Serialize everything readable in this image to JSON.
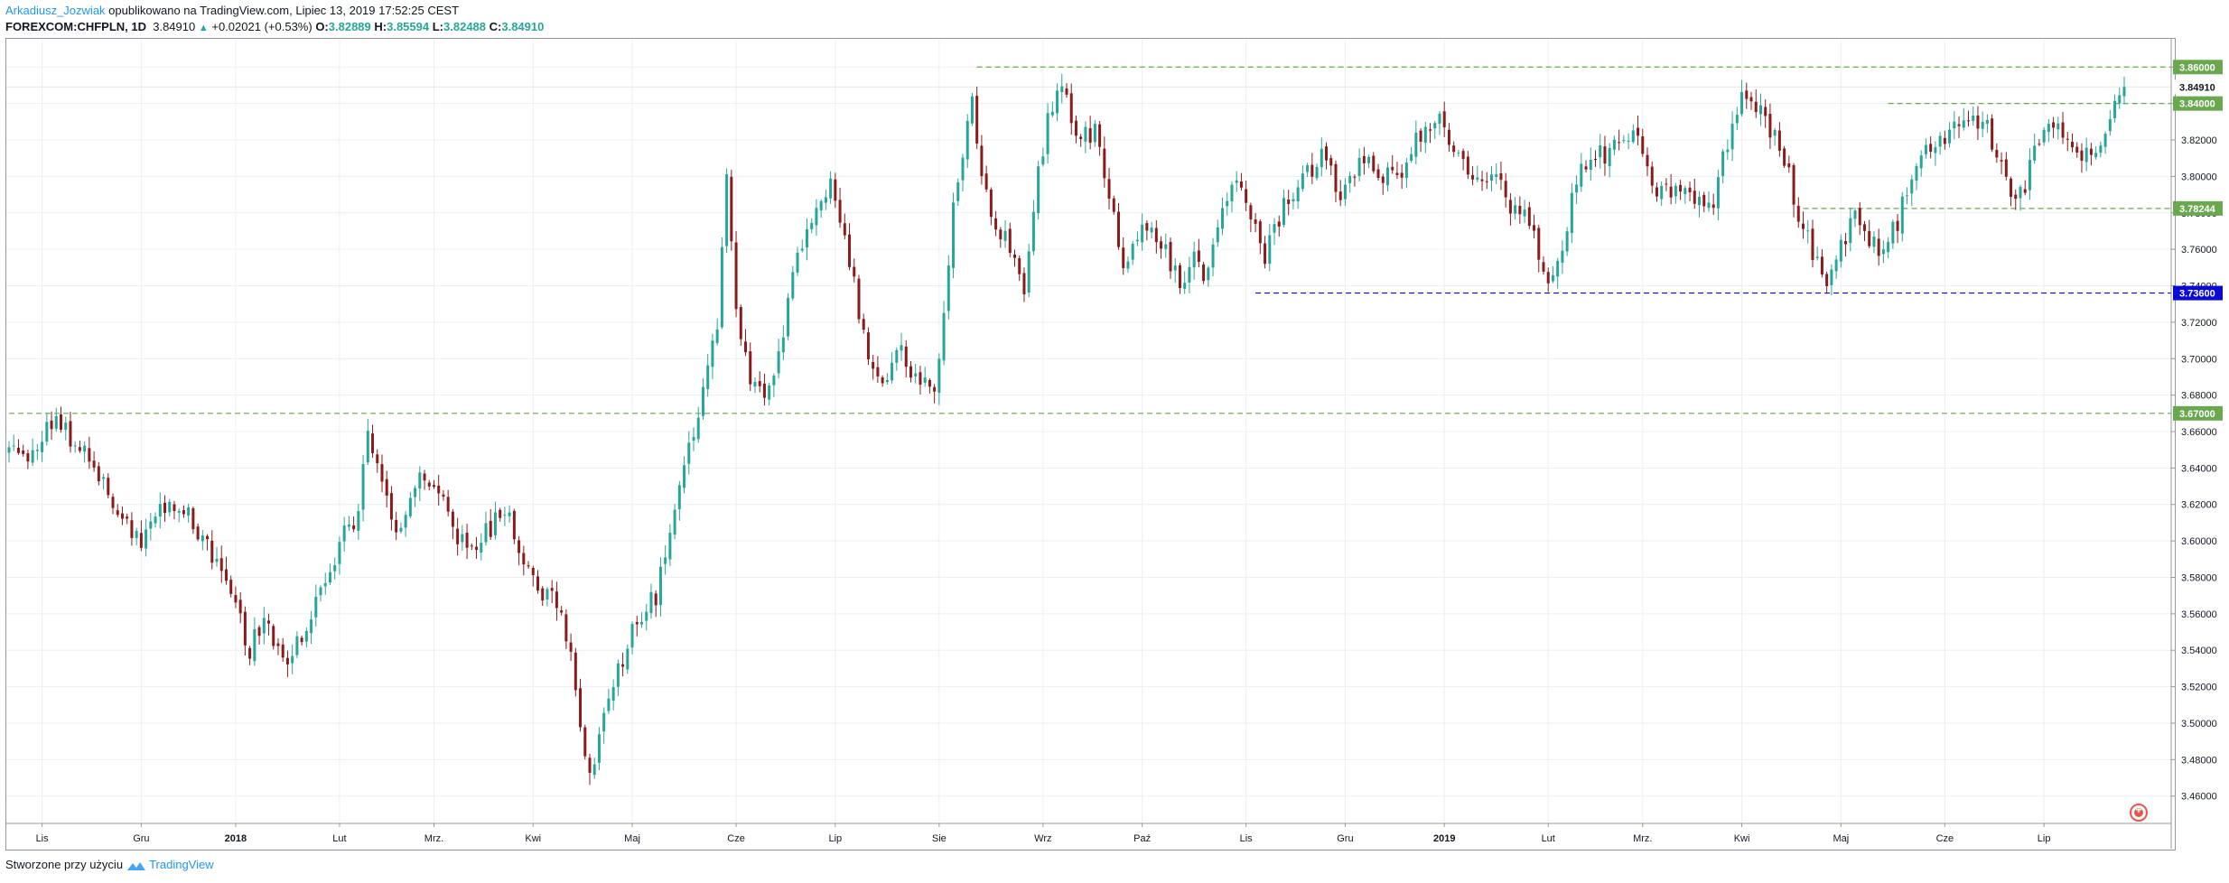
{
  "header": {
    "author": "Arkadiusz_Jozwiak",
    "published_text": "opublikowano na TradingView.com, Lipiec 13, 2019 17:52:25 CEST",
    "symbol": "FOREXCOM:CHFPLN, 1D",
    "last_price": "3.84910",
    "change_arrow": "▲",
    "change": "+0.02021 (+0.53%)",
    "open_label": "O:",
    "open": "3.82889",
    "high_label": "H:",
    "high": "3.85594",
    "low_label": "L:",
    "low": "3.82488",
    "close_label": "C:",
    "close": "3.84910"
  },
  "footer": {
    "created_with": "Stworzone przy użyciu",
    "brand": "TradingView"
  },
  "colors": {
    "up": "#26a69a",
    "down": "#8b1a1a",
    "green_level": "#6aa84f",
    "blue_level": "#0a0ad6",
    "grid": "#eceff2"
  },
  "chart_data": {
    "type": "candlestick",
    "ylim": [
      3.445,
      3.875
    ],
    "y_ticks": [
      "3.86000",
      "3.84000",
      "3.82000",
      "3.80000",
      "3.78000",
      "3.76000",
      "3.74000",
      "3.72000",
      "3.70000",
      "3.68000",
      "3.66000",
      "3.64000",
      "3.62000",
      "3.60000",
      "3.58000",
      "3.56000",
      "3.54000",
      "3.52000",
      "3.50000",
      "3.48000",
      "3.46000"
    ],
    "x_ticks": [
      {
        "label": "Lis",
        "i": 7
      },
      {
        "label": "Gru",
        "i": 28
      },
      {
        "label": "2018",
        "i": 48
      },
      {
        "label": "Lut",
        "i": 70
      },
      {
        "label": "Mrz.",
        "i": 90
      },
      {
        "label": "Kwi",
        "i": 111
      },
      {
        "label": "Maj",
        "i": 132
      },
      {
        "label": "Cze",
        "i": 154
      },
      {
        "label": "Lip",
        "i": 175
      },
      {
        "label": "Sie",
        "i": 197
      },
      {
        "label": "Wrz",
        "i": 219
      },
      {
        "label": "Paź",
        "i": 240
      },
      {
        "label": "Lis",
        "i": 262
      },
      {
        "label": "Gru",
        "i": 283
      },
      {
        "label": "2019",
        "i": 304
      },
      {
        "label": "Lut",
        "i": 326
      },
      {
        "label": "Mrz.",
        "i": 346
      },
      {
        "label": "Kwi",
        "i": 367
      },
      {
        "label": "Maj",
        "i": 388
      },
      {
        "label": "Cze",
        "i": 410
      },
      {
        "label": "Lip",
        "i": 431
      }
    ],
    "levels": [
      {
        "price": 3.86,
        "label": "3.86000",
        "style": "green",
        "from_i": 205
      },
      {
        "price": 3.84,
        "label": "3.84000",
        "style": "green",
        "from_i": 398
      },
      {
        "price": 3.78244,
        "label": "3.78244",
        "style": "green",
        "from_i": 380
      },
      {
        "price": 3.736,
        "label": "3.73600",
        "style": "blue",
        "from_i": 264
      },
      {
        "price": 3.67,
        "label": "3.67000",
        "style": "green",
        "from_i": 0
      }
    ],
    "last_price_label": "3.84910",
    "last_price": 3.8491,
    "anchors": [
      [
        0,
        3.655
      ],
      [
        4,
        3.645
      ],
      [
        9,
        3.665
      ],
      [
        14,
        3.655
      ],
      [
        18,
        3.64
      ],
      [
        24,
        3.61
      ],
      [
        28,
        3.6
      ],
      [
        32,
        3.62
      ],
      [
        36,
        3.62
      ],
      [
        40,
        3.605
      ],
      [
        44,
        3.585
      ],
      [
        47,
        3.57
      ],
      [
        51,
        3.54
      ],
      [
        54,
        3.56
      ],
      [
        58,
        3.535
      ],
      [
        62,
        3.545
      ],
      [
        66,
        3.57
      ],
      [
        70,
        3.6
      ],
      [
        74,
        3.615
      ],
      [
        76,
        3.66
      ],
      [
        78,
        3.64
      ],
      [
        82,
        3.605
      ],
      [
        86,
        3.635
      ],
      [
        90,
        3.635
      ],
      [
        94,
        3.605
      ],
      [
        98,
        3.595
      ],
      [
        103,
        3.61
      ],
      [
        106,
        3.615
      ],
      [
        110,
        3.58
      ],
      [
        114,
        3.57
      ],
      [
        117,
        3.56
      ],
      [
        119,
        3.535
      ],
      [
        123,
        3.47
      ],
      [
        126,
        3.51
      ],
      [
        129,
        3.53
      ],
      [
        132,
        3.55
      ],
      [
        137,
        3.57
      ],
      [
        140,
        3.6
      ],
      [
        143,
        3.64
      ],
      [
        146,
        3.665
      ],
      [
        150,
        3.72
      ],
      [
        152,
        3.8
      ],
      [
        154,
        3.73
      ],
      [
        157,
        3.69
      ],
      [
        160,
        3.68
      ],
      [
        163,
        3.7
      ],
      [
        166,
        3.75
      ],
      [
        170,
        3.77
      ],
      [
        174,
        3.8
      ],
      [
        176,
        3.78
      ],
      [
        179,
        3.74
      ],
      [
        182,
        3.695
      ],
      [
        185,
        3.685
      ],
      [
        188,
        3.71
      ],
      [
        192,
        3.69
      ],
      [
        196,
        3.685
      ],
      [
        198,
        3.72
      ],
      [
        200,
        3.78
      ],
      [
        204,
        3.84
      ],
      [
        206,
        3.8
      ],
      [
        208,
        3.78
      ],
      [
        212,
        3.76
      ],
      [
        215,
        3.74
      ],
      [
        218,
        3.8
      ],
      [
        220,
        3.83
      ],
      [
        222,
        3.85
      ],
      [
        224,
        3.84
      ],
      [
        226,
        3.82
      ],
      [
        230,
        3.825
      ],
      [
        233,
        3.79
      ],
      [
        236,
        3.755
      ],
      [
        240,
        3.77
      ],
      [
        244,
        3.765
      ],
      [
        248,
        3.74
      ],
      [
        251,
        3.755
      ],
      [
        254,
        3.745
      ],
      [
        257,
        3.78
      ],
      [
        260,
        3.8
      ],
      [
        263,
        3.78
      ],
      [
        266,
        3.755
      ],
      [
        270,
        3.785
      ],
      [
        274,
        3.8
      ],
      [
        278,
        3.81
      ],
      [
        282,
        3.79
      ],
      [
        286,
        3.81
      ],
      [
        290,
        3.8
      ],
      [
        294,
        3.8
      ],
      [
        297,
        3.815
      ],
      [
        300,
        3.825
      ],
      [
        303,
        3.83
      ],
      [
        306,
        3.815
      ],
      [
        309,
        3.8
      ],
      [
        312,
        3.795
      ],
      [
        315,
        3.8
      ],
      [
        318,
        3.78
      ],
      [
        321,
        3.785
      ],
      [
        324,
        3.76
      ],
      [
        326,
        3.74
      ],
      [
        329,
        3.76
      ],
      [
        332,
        3.8
      ],
      [
        336,
        3.81
      ],
      [
        340,
        3.815
      ],
      [
        344,
        3.825
      ],
      [
        347,
        3.8
      ],
      [
        350,
        3.79
      ],
      [
        354,
        3.795
      ],
      [
        357,
        3.785
      ],
      [
        361,
        3.785
      ],
      [
        364,
        3.82
      ],
      [
        367,
        3.845
      ],
      [
        370,
        3.84
      ],
      [
        373,
        3.825
      ],
      [
        376,
        3.81
      ],
      [
        379,
        3.78
      ],
      [
        382,
        3.76
      ],
      [
        385,
        3.745
      ],
      [
        388,
        3.76
      ],
      [
        391,
        3.785
      ],
      [
        393,
        3.765
      ],
      [
        396,
        3.76
      ],
      [
        400,
        3.775
      ],
      [
        403,
        3.8
      ],
      [
        406,
        3.815
      ],
      [
        409,
        3.82
      ],
      [
        412,
        3.83
      ],
      [
        415,
        3.825
      ],
      [
        418,
        3.835
      ],
      [
        421,
        3.81
      ],
      [
        424,
        3.79
      ],
      [
        427,
        3.795
      ],
      [
        430,
        3.82
      ],
      [
        433,
        3.83
      ],
      [
        436,
        3.825
      ],
      [
        439,
        3.81
      ],
      [
        442,
        3.815
      ],
      [
        445,
        3.83
      ],
      [
        448,
        3.8491
      ]
    ],
    "bar_count": 449
  }
}
